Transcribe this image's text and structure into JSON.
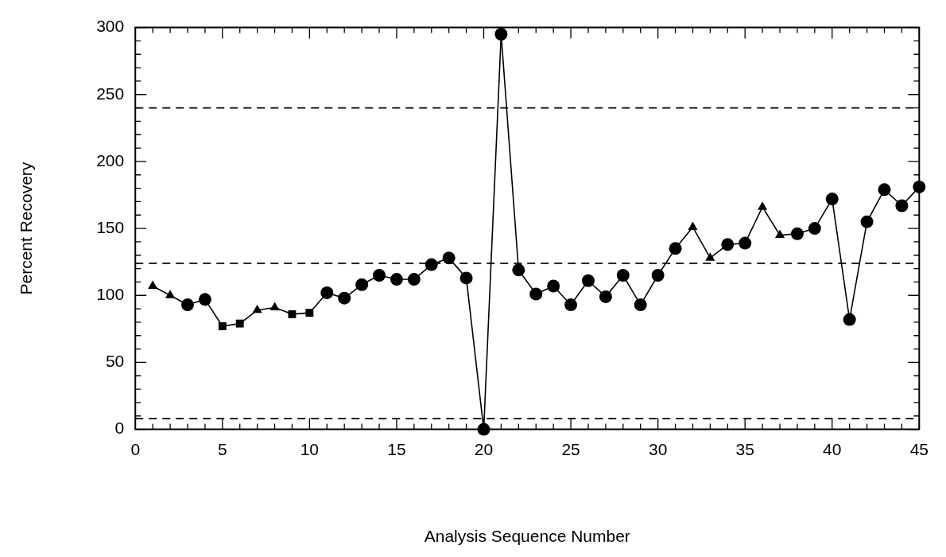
{
  "chart_data": {
    "type": "line",
    "xlabel": "Analysis Sequence Number",
    "ylabel": "Percent Recovery",
    "xlim": [
      0,
      45
    ],
    "xticks": [
      0,
      5,
      10,
      15,
      20,
      25,
      30,
      35,
      40,
      45
    ],
    "ylim": [
      0,
      300
    ],
    "yticks": [
      0,
      50,
      100,
      150,
      200,
      250,
      300
    ],
    "grid": false,
    "legend": false,
    "series": [
      {
        "marker": "none",
        "line_style": "solid",
        "color": "#000000",
        "x": [
          1,
          2,
          3,
          4,
          5,
          6,
          7,
          8,
          9,
          10,
          11,
          12,
          13,
          14,
          15,
          16,
          17,
          18,
          19,
          20,
          21,
          22,
          23,
          24,
          25,
          26,
          27,
          28,
          29,
          30,
          31,
          32,
          33,
          34,
          35,
          36,
          37,
          38,
          39,
          40,
          41,
          42,
          43,
          44,
          45
        ],
        "values": [
          107,
          100,
          93,
          97,
          77,
          79,
          89,
          91,
          86,
          87,
          102,
          98,
          108,
          115,
          112,
          112,
          123,
          128,
          113,
          0,
          295,
          119,
          101,
          107,
          93,
          111,
          99,
          115,
          93,
          115,
          135,
          151,
          128,
          138,
          139,
          166,
          145,
          146,
          150,
          172,
          82,
          155,
          179,
          167,
          181
        ]
      },
      {
        "type": "scatter",
        "marker": "triangle",
        "color": "#000000",
        "x": [
          1,
          2,
          7,
          8,
          32,
          33,
          36,
          37
        ],
        "values": [
          107,
          100,
          89,
          91,
          151,
          128,
          166,
          145
        ]
      },
      {
        "type": "scatter",
        "marker": "square",
        "color": "#000000",
        "x": [
          5,
          6,
          9,
          10
        ],
        "values": [
          77,
          79,
          86,
          87
        ]
      },
      {
        "type": "scatter",
        "marker": "circle",
        "color": "#000000",
        "x": [
          3,
          4,
          11,
          12,
          13,
          14,
          15,
          16,
          17,
          18,
          19,
          20,
          21,
          22,
          23,
          24,
          25,
          26,
          27,
          28,
          29,
          30,
          31,
          34,
          35,
          38,
          39,
          40,
          41,
          42,
          43,
          44,
          45
        ],
        "values": [
          93,
          97,
          102,
          98,
          108,
          115,
          112,
          112,
          123,
          128,
          113,
          0,
          295,
          119,
          101,
          107,
          93,
          111,
          99,
          115,
          93,
          115,
          135,
          138,
          139,
          146,
          150,
          172,
          82,
          155,
          179,
          167,
          181
        ]
      }
    ],
    "ref_lines": [
      {
        "axis": "y",
        "value": 240,
        "line_style": "dashed"
      },
      {
        "axis": "y",
        "value": 124,
        "line_style": "dashed"
      },
      {
        "axis": "y",
        "value": 8,
        "line_style": "dashed"
      }
    ]
  }
}
